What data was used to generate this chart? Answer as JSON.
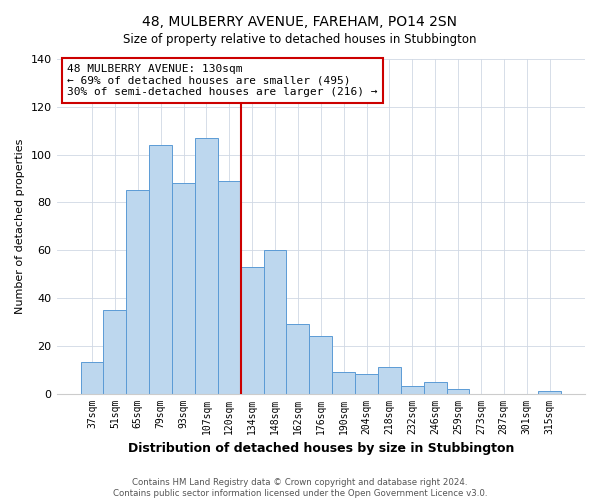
{
  "title": "48, MULBERRY AVENUE, FAREHAM, PO14 2SN",
  "subtitle": "Size of property relative to detached houses in Stubbington",
  "xlabel": "Distribution of detached houses by size in Stubbington",
  "ylabel": "Number of detached properties",
  "bar_labels": [
    "37sqm",
    "51sqm",
    "65sqm",
    "79sqm",
    "93sqm",
    "107sqm",
    "120sqm",
    "134sqm",
    "148sqm",
    "162sqm",
    "176sqm",
    "190sqm",
    "204sqm",
    "218sqm",
    "232sqm",
    "246sqm",
    "259sqm",
    "273sqm",
    "287sqm",
    "301sqm",
    "315sqm"
  ],
  "bar_values": [
    13,
    35,
    85,
    104,
    88,
    107,
    89,
    53,
    60,
    29,
    24,
    9,
    8,
    11,
    3,
    5,
    2,
    0,
    0,
    0,
    1
  ],
  "bar_color": "#bdd7ee",
  "bar_edge_color": "#5b9bd5",
  "vline_x_index": 7,
  "vline_color": "#cc0000",
  "annotation_line1": "48 MULBERRY AVENUE: 130sqm",
  "annotation_line2": "← 69% of detached houses are smaller (495)",
  "annotation_line3": "30% of semi-detached houses are larger (216) →",
  "annotation_box_color": "#ffffff",
  "annotation_box_edge": "#cc0000",
  "ylim": [
    0,
    140
  ],
  "yticks": [
    0,
    20,
    40,
    60,
    80,
    100,
    120,
    140
  ],
  "footnote": "Contains HM Land Registry data © Crown copyright and database right 2024.\nContains public sector information licensed under the Open Government Licence v3.0.",
  "background_color": "#ffffff",
  "grid_color": "#d0d8e4"
}
